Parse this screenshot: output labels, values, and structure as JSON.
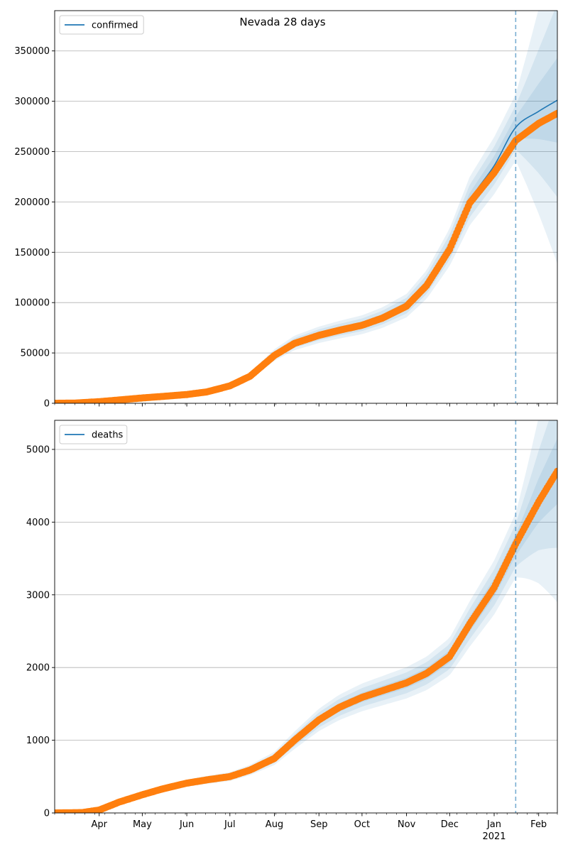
{
  "figure": {
    "suptitle": "Nevada 28 days",
    "colors": {
      "model_line": "#1f77b4",
      "band": "#1f77b4",
      "observed": "#ff7f0e",
      "grid": "#b0b0b0",
      "axis": "#000000"
    }
  },
  "chart_data": [
    {
      "type": "line",
      "title": "Nevada 28 days",
      "legend": {
        "label": "confirmed",
        "placement": "top-left"
      },
      "x_axis": {
        "type": "date",
        "range": [
          "2020-03-01",
          "2021-02-14"
        ],
        "major_ticks": [
          {
            "date": "2020-04-01",
            "label": "Apr"
          },
          {
            "date": "2020-05-01",
            "label": "May"
          },
          {
            "date": "2020-06-01",
            "label": "Jun"
          },
          {
            "date": "2020-07-01",
            "label": "Jul"
          },
          {
            "date": "2020-08-01",
            "label": "Aug"
          },
          {
            "date": "2020-09-01",
            "label": "Sep"
          },
          {
            "date": "2020-10-01",
            "label": "Oct"
          },
          {
            "date": "2020-11-01",
            "label": "Nov"
          },
          {
            "date": "2020-12-01",
            "label": "Dec"
          },
          {
            "date": "2021-01-01",
            "label": "Jan",
            "sublabel": "2021"
          },
          {
            "date": "2021-02-01",
            "label": "Feb"
          }
        ],
        "tick_labels_visible": false
      },
      "y_axis": {
        "range": [
          0,
          390000
        ],
        "ticks": [
          0,
          50000,
          100000,
          150000,
          200000,
          250000,
          300000,
          350000
        ],
        "tick_labels": [
          "0",
          "50000",
          "100000",
          "150000",
          "200000",
          "250000",
          "300000",
          "350000"
        ],
        "grid": true
      },
      "forecast_start": "2021-01-16",
      "series": [
        {
          "name": "confirmed",
          "role": "model",
          "points": [
            [
              "2020-03-01",
              0
            ],
            [
              "2020-03-15",
              300
            ],
            [
              "2020-04-01",
              1700
            ],
            [
              "2020-04-15",
              3400
            ],
            [
              "2020-05-01",
              5400
            ],
            [
              "2020-05-15",
              6900
            ],
            [
              "2020-06-01",
              8800
            ],
            [
              "2020-06-15",
              11500
            ],
            [
              "2020-07-01",
              17500
            ],
            [
              "2020-07-15",
              27000
            ],
            [
              "2020-08-01",
              48000
            ],
            [
              "2020-08-15",
              60000
            ],
            [
              "2020-09-01",
              68000
            ],
            [
              "2020-09-15",
              73000
            ],
            [
              "2020-10-01",
              78000
            ],
            [
              "2020-10-15",
              85000
            ],
            [
              "2020-11-01",
              97000
            ],
            [
              "2020-11-15",
              118000
            ],
            [
              "2020-12-01",
              155000
            ],
            [
              "2020-12-15",
              201000
            ],
            [
              "2021-01-01",
              236000
            ],
            [
              "2021-01-16",
              274000
            ],
            [
              "2021-02-01",
              290000
            ],
            [
              "2021-02-14",
              301000
            ]
          ],
          "bands": [
            {
              "level": "outer",
              "width_ratio": 0.12,
              "forecast_growth": 3.5
            },
            {
              "level": "middle",
              "width_ratio": 0.08,
              "forecast_growth": 3.0
            },
            {
              "level": "inner",
              "width_ratio": 0.04,
              "forecast_growth": 2.5
            }
          ]
        },
        {
          "name": "observed",
          "role": "observed",
          "points": [
            [
              "2020-03-01",
              0
            ],
            [
              "2020-03-15",
              200
            ],
            [
              "2020-04-01",
              1600
            ],
            [
              "2020-04-15",
              3300
            ],
            [
              "2020-05-01",
              5300
            ],
            [
              "2020-05-15",
              6800
            ],
            [
              "2020-06-01",
              8700
            ],
            [
              "2020-06-15",
              11300
            ],
            [
              "2020-07-01",
              17300
            ],
            [
              "2020-07-15",
              26800
            ],
            [
              "2020-08-01",
              47500
            ],
            [
              "2020-08-15",
              59500
            ],
            [
              "2020-09-01",
              67500
            ],
            [
              "2020-09-15",
              72500
            ],
            [
              "2020-10-01",
              77500
            ],
            [
              "2020-10-15",
              84500
            ],
            [
              "2020-11-01",
              96500
            ],
            [
              "2020-11-15",
              117000
            ],
            [
              "2020-12-01",
              153000
            ],
            [
              "2020-12-15",
              199000
            ],
            [
              "2021-01-01",
              229000
            ],
            [
              "2021-01-16",
              261000
            ],
            [
              "2021-02-01",
              278000
            ],
            [
              "2021-02-14",
              288000
            ]
          ]
        }
      ]
    },
    {
      "type": "line",
      "legend": {
        "label": "deaths",
        "placement": "top-left"
      },
      "x_axis": {
        "type": "date",
        "range": [
          "2020-03-01",
          "2021-02-14"
        ],
        "major_ticks": [
          {
            "date": "2020-04-01",
            "label": "Apr"
          },
          {
            "date": "2020-05-01",
            "label": "May"
          },
          {
            "date": "2020-06-01",
            "label": "Jun"
          },
          {
            "date": "2020-07-01",
            "label": "Jul"
          },
          {
            "date": "2020-08-01",
            "label": "Aug"
          },
          {
            "date": "2020-09-01",
            "label": "Sep"
          },
          {
            "date": "2020-10-01",
            "label": "Oct"
          },
          {
            "date": "2020-11-01",
            "label": "Nov"
          },
          {
            "date": "2020-12-01",
            "label": "Dec"
          },
          {
            "date": "2021-01-01",
            "label": "Jan",
            "sublabel": "2021"
          },
          {
            "date": "2021-02-01",
            "label": "Feb"
          }
        ],
        "tick_labels_visible": true
      },
      "y_axis": {
        "range": [
          0,
          5400
        ],
        "ticks": [
          0,
          1000,
          2000,
          3000,
          4000,
          5000
        ],
        "tick_labels": [
          "0",
          "1000",
          "2000",
          "3000",
          "4000",
          "5000"
        ],
        "grid": true
      },
      "forecast_start": "2021-01-16",
      "series": [
        {
          "name": "deaths",
          "role": "model",
          "points": [
            [
              "2020-03-01",
              0
            ],
            [
              "2020-03-20",
              5
            ],
            [
              "2020-04-01",
              40
            ],
            [
              "2020-04-15",
              150
            ],
            [
              "2020-05-01",
              250
            ],
            [
              "2020-05-15",
              330
            ],
            [
              "2020-06-01",
              410
            ],
            [
              "2020-06-15",
              455
            ],
            [
              "2020-07-01",
              500
            ],
            [
              "2020-07-15",
              590
            ],
            [
              "2020-08-01",
              750
            ],
            [
              "2020-08-15",
              1000
            ],
            [
              "2020-09-01",
              1280
            ],
            [
              "2020-09-15",
              1450
            ],
            [
              "2020-10-01",
              1590
            ],
            [
              "2020-10-15",
              1680
            ],
            [
              "2020-11-01",
              1790
            ],
            [
              "2020-11-15",
              1920
            ],
            [
              "2020-12-01",
              2150
            ],
            [
              "2020-12-15",
              2600
            ],
            [
              "2021-01-01",
              3100
            ],
            [
              "2021-01-16",
              3680
            ],
            [
              "2021-02-01",
              4300
            ],
            [
              "2021-02-14",
              4700
            ]
          ],
          "bands": [
            {
              "level": "outer",
              "width_ratio": 0.12,
              "forecast_growth": 2.2
            },
            {
              "level": "middle",
              "width_ratio": 0.08,
              "forecast_growth": 1.8
            },
            {
              "level": "inner",
              "width_ratio": 0.04,
              "forecast_growth": 1.4
            }
          ]
        },
        {
          "name": "observed",
          "role": "observed",
          "points": [
            [
              "2020-03-01",
              0
            ],
            [
              "2020-03-20",
              5
            ],
            [
              "2020-04-01",
              40
            ],
            [
              "2020-04-15",
              150
            ],
            [
              "2020-05-01",
              250
            ],
            [
              "2020-05-15",
              330
            ],
            [
              "2020-06-01",
              410
            ],
            [
              "2020-06-15",
              455
            ],
            [
              "2020-07-01",
              500
            ],
            [
              "2020-07-15",
              590
            ],
            [
              "2020-08-01",
              750
            ],
            [
              "2020-08-15",
              1000
            ],
            [
              "2020-09-01",
              1280
            ],
            [
              "2020-09-15",
              1450
            ],
            [
              "2020-10-01",
              1590
            ],
            [
              "2020-10-15",
              1680
            ],
            [
              "2020-11-01",
              1790
            ],
            [
              "2020-11-15",
              1920
            ],
            [
              "2020-12-01",
              2150
            ],
            [
              "2020-12-15",
              2600
            ],
            [
              "2021-01-01",
              3100
            ],
            [
              "2021-01-16",
              3700
            ],
            [
              "2021-02-01",
              4280
            ],
            [
              "2021-02-14",
              4700
            ]
          ]
        }
      ]
    }
  ]
}
